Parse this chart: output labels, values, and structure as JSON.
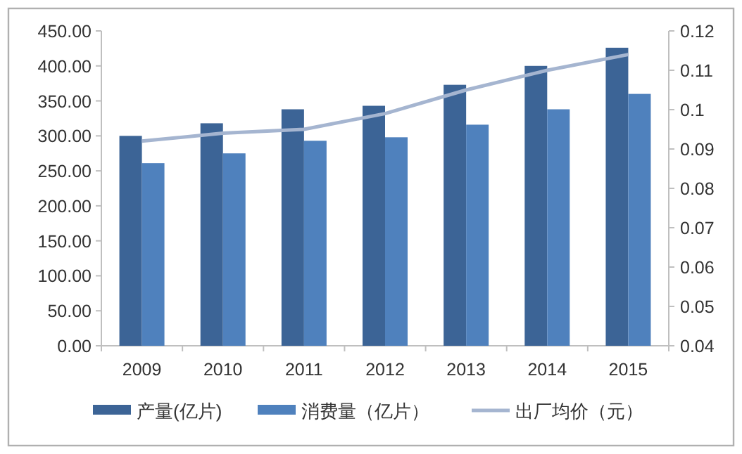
{
  "chart_data": {
    "type": "bar",
    "categories": [
      "2009",
      "2010",
      "2011",
      "2012",
      "2013",
      "2014",
      "2015"
    ],
    "series": [
      {
        "name": "产量(亿片)",
        "color": "#3c6496",
        "values": [
          300,
          318,
          338,
          343,
          373,
          400,
          426
        ]
      },
      {
        "name": "消费量（亿片）",
        "color": "#4f81bd",
        "values": [
          261,
          275,
          293,
          298,
          316,
          338,
          360
        ]
      },
      {
        "name": "出厂均价（元）",
        "color": "#a5b5d0",
        "type": "line",
        "axis": "y2",
        "values": [
          0.092,
          0.094,
          0.095,
          0.099,
          0.105,
          0.11,
          0.114
        ]
      }
    ],
    "ylim": [
      0,
      450
    ],
    "yticks": [
      {
        "value": 0,
        "label": "0.00"
      },
      {
        "value": 50,
        "label": "50.00"
      },
      {
        "value": 100,
        "label": "100.00"
      },
      {
        "value": 150,
        "label": "150.00"
      },
      {
        "value": 200,
        "label": "200.00"
      },
      {
        "value": 250,
        "label": "250.00"
      },
      {
        "value": 300,
        "label": "300.00"
      },
      {
        "value": 350,
        "label": "350.00"
      },
      {
        "value": 400,
        "label": "400.00"
      },
      {
        "value": 450,
        "label": "450.00"
      }
    ],
    "y2lim": [
      0.04,
      0.12
    ],
    "y2ticks": [
      0.04,
      0.05,
      0.06,
      0.07,
      0.08,
      0.09,
      0.1,
      0.11,
      0.12
    ],
    "legend": "bottom",
    "grid": false,
    "marker": "none"
  }
}
